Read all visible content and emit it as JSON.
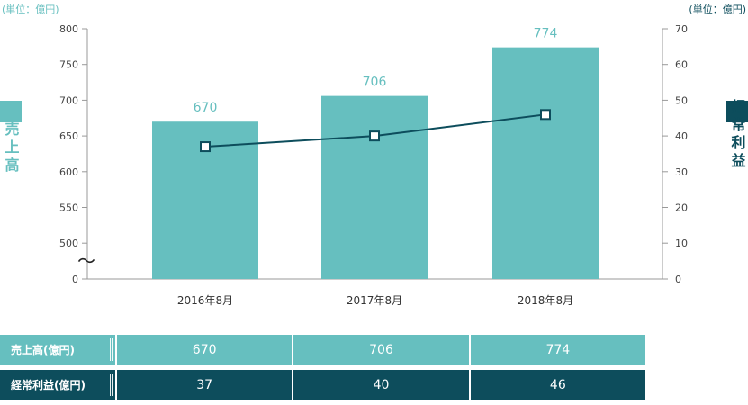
{
  "colors": {
    "sales": "#66bfbf",
    "profit": "#0d4d5c",
    "axis": "#999999"
  },
  "chart_data": {
    "type": "bar",
    "categories": [
      "2016年8月",
      "2017年8月",
      "2018年8月"
    ],
    "left_unit": "(単位：億円)",
    "right_unit": "(単位：億円)",
    "left_axis_label": "売上高",
    "right_axis_label": "経常利益",
    "left_ticks": [
      "800",
      "750",
      "700",
      "650",
      "600",
      "550",
      "500",
      "0"
    ],
    "right_ticks": [
      "70",
      "60",
      "50",
      "40",
      "30",
      "20",
      "10",
      "0"
    ],
    "ylim_left": [
      450,
      800
    ],
    "ylim_right": [
      0,
      70
    ],
    "axis_break": "〜",
    "series": [
      {
        "name": "売上高",
        "type": "bar",
        "axis": "left",
        "values": [
          670,
          706,
          774
        ]
      },
      {
        "name": "経常利益",
        "type": "line",
        "axis": "right",
        "values": [
          37,
          40,
          46
        ]
      }
    ],
    "bar_labels": [
      "670",
      "706",
      "774"
    ]
  },
  "table": {
    "rows": [
      {
        "header": "売上高(億円)",
        "values": [
          "670",
          "706",
          "774"
        ]
      },
      {
        "header": "経常利益(億円)",
        "values": [
          "37",
          "40",
          "46"
        ]
      }
    ]
  }
}
